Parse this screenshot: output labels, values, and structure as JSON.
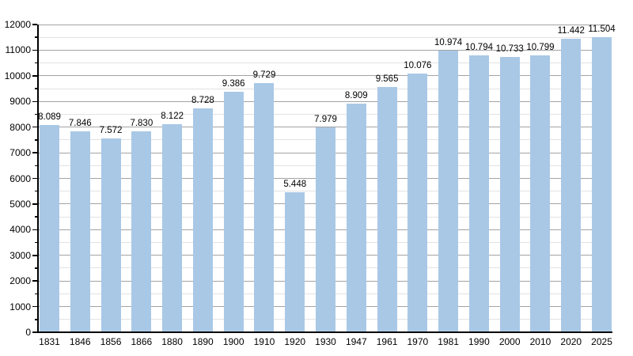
{
  "chart_data": {
    "type": "bar",
    "title": "",
    "xlabel": "",
    "ylabel": "",
    "categories": [
      "1831",
      "1846",
      "1856",
      "1866",
      "1880",
      "1890",
      "1900",
      "1910",
      "1920",
      "1930",
      "1947",
      "1961",
      "1970",
      "1981",
      "1990",
      "2000",
      "2010",
      "2020",
      "2025"
    ],
    "values": [
      8089,
      7846,
      7572,
      7830,
      8122,
      8728,
      9386,
      9729,
      5448,
      7979,
      8909,
      9565,
      10076,
      10974,
      10794,
      10733,
      10799,
      11442,
      11504
    ],
    "value_labels": [
      "8.089",
      "7.846",
      "7.572",
      "7.830",
      "8.122",
      "8.728",
      "9.386",
      "9.729",
      "5.448",
      "7.979",
      "8.909",
      "9.565",
      "10.076",
      "10.974",
      "10.794",
      "10.733",
      "10.799",
      "11.442",
      "11.504"
    ],
    "ylim": [
      0,
      12000
    ],
    "y_major_step": 1000,
    "y_minor_step": 500,
    "y_tick_labels": [
      "0",
      "1000",
      "2000",
      "3000",
      "4000",
      "5000",
      "6000",
      "7000",
      "8000",
      "9000",
      "10000",
      "11000",
      "12000"
    ],
    "grid": true,
    "legend": null,
    "colors": {
      "bar_fill": "#a9c8e6",
      "gridline_major": "#a3a3a3",
      "gridline_minor": "#e2e2e2",
      "axis": "#000000",
      "text": "#000000",
      "background": "#ffffff"
    }
  }
}
